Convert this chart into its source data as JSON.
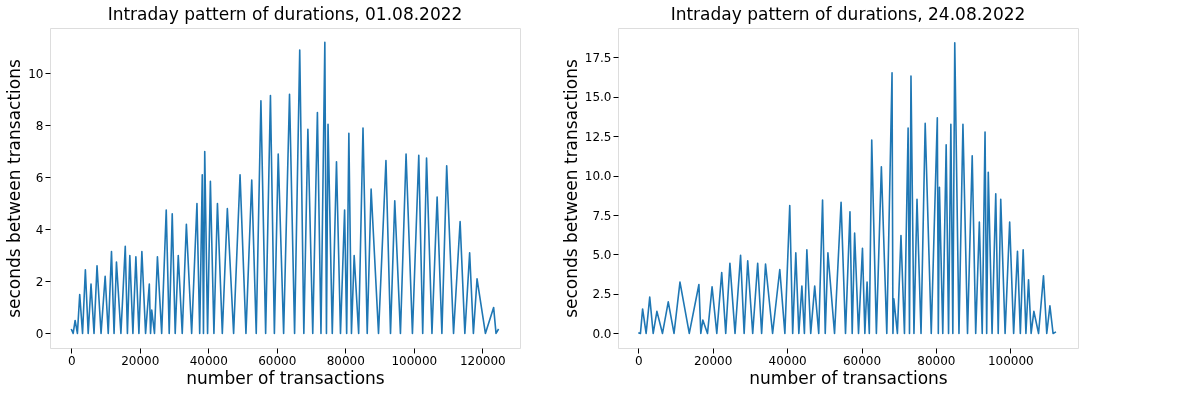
{
  "chart_data": [
    {
      "type": "line",
      "title": "Intraday pattern of durations, 01.08.2022",
      "xlabel": "number of transactions",
      "ylabel": "seconds between transactions",
      "xlim": [
        -6200,
        131000
      ],
      "ylim": [
        -0.56,
        11.75
      ],
      "xticks": [
        0,
        20000,
        40000,
        60000,
        80000,
        100000,
        120000
      ],
      "yticks": [
        0,
        2,
        4,
        6,
        8,
        10
      ],
      "grid": false,
      "marker": "none",
      "line_style": "solid",
      "series": [
        {
          "color": "#1f77b4",
          "x": [
            0,
            567,
            1134,
            1800,
            2474,
            3300,
            4124,
            4950,
            5774,
            6650,
            7526,
            8700,
            9900,
            10800,
            11750,
            12500,
            13200,
            14500,
            15770,
            16400,
            17100,
            18000,
            18870,
            19750,
            20620,
            21700,
            22790,
            23150,
            23500,
            24300,
            25160,
            26400,
            27730,
            28600,
            29480,
            30350,
            31240,
            32400,
            33610,
            35150,
            36700,
            37500,
            38250,
            38600,
            38970,
            39800,
            40620,
            41650,
            42680,
            44100,
            45570,
            47400,
            49280,
            51000,
            52690,
            54000,
            55370,
            56750,
            58150,
            59300,
            60420,
            62000,
            63720,
            65200,
            66700,
            67900,
            69080,
            70500,
            71860,
            72900,
            74030,
            74500,
            74960,
            76200,
            77430,
            78600,
            79800,
            80400,
            81040,
            81800,
            82590,
            83900,
            85170,
            86400,
            87540,
            89700,
            91870,
            93200,
            94440,
            96100,
            97740,
            99600,
            101450,
            102600,
            103720,
            105300,
            106810,
            108200,
            109600,
            111600,
            113520,
            114900,
            116300,
            117400,
            118460,
            120900,
            123300,
            124000,
            124750
          ],
          "values": [
            0.17,
            0,
            0.5,
            0,
            1.5,
            0,
            2.45,
            0,
            1.9,
            0,
            2.6,
            0,
            2.2,
            0,
            3.15,
            0,
            2.75,
            0,
            3.35,
            0,
            3.0,
            0,
            2.95,
            0,
            3.15,
            0,
            1.9,
            0,
            0.9,
            0,
            2.95,
            0,
            4.75,
            0,
            4.6,
            0,
            3.0,
            0,
            4.2,
            0,
            5.0,
            0,
            6.1,
            0,
            7.0,
            0,
            5.85,
            0,
            5.0,
            0,
            4.8,
            0,
            6.1,
            0,
            5.9,
            0,
            8.95,
            0,
            9.15,
            0,
            6.9,
            0,
            9.2,
            0,
            10.9,
            0,
            7.85,
            0,
            8.5,
            0,
            11.2,
            0,
            8.05,
            0,
            6.6,
            0,
            4.75,
            0,
            7.7,
            0,
            3.0,
            0,
            7.9,
            0,
            5.55,
            0,
            6.65,
            0,
            5.1,
            0,
            6.9,
            0,
            6.85,
            0,
            6.75,
            0,
            5.25,
            0,
            6.45,
            0,
            4.3,
            0,
            3.1,
            0,
            2.1,
            0,
            1.0,
            0,
            0.17
          ]
        }
      ]
    },
    {
      "type": "line",
      "title": "Intraday pattern of durations, 24.08.2022",
      "xlabel": "number of transactions",
      "ylabel": "seconds between transactions",
      "xlim": [
        -5460,
        118200
      ],
      "ylim": [
        -0.92,
        19.34
      ],
      "xticks": [
        0,
        20000,
        40000,
        60000,
        80000,
        100000
      ],
      "yticks": [
        {
          "value": 0,
          "label": "0.0"
        },
        {
          "value": 2.5,
          "label": "2.5"
        },
        {
          "value": 5,
          "label": "5.0"
        },
        {
          "value": 7.5,
          "label": "7.5"
        },
        {
          "value": 10,
          "label": "10.0"
        },
        {
          "value": 12.5,
          "label": "12.5"
        },
        {
          "value": 15,
          "label": "15.0"
        },
        {
          "value": 17.5,
          "label": "17.5"
        }
      ],
      "grid": false,
      "marker": "none",
      "line_style": "solid",
      "series": [
        {
          "color": "#1f77b4",
          "x": [
            0,
            575,
            1150,
            2100,
            3070,
            4000,
            5000,
            6500,
            8050,
            9600,
            11200,
            13700,
            16290,
            16800,
            17340,
            18600,
            19830,
            21100,
            22420,
            23500,
            24620,
            26000,
            27490,
            28450,
            29410,
            30750,
            32090,
            33150,
            34200,
            36100,
            38030,
            39400,
            40710,
            41500,
            42340,
            43150,
            43970,
            44650,
            45310,
            46350,
            47420,
            48500,
            49530,
            50250,
            50970,
            52750,
            54510,
            55700,
            56900,
            57500,
            58150,
            59200,
            60260,
            60900,
            61500,
            62100,
            62750,
            64000,
            65340,
            66800,
            68210,
            68450,
            68690,
            69650,
            70610,
            71550,
            72530,
            72900,
            73300,
            74100,
            74920,
            76000,
            77120,
            78750,
            80380,
            80650,
            80950,
            81850,
            82760,
            83400,
            84020,
            84550,
            85070,
            86200,
            87270,
            88500,
            89760,
            90700,
            91680,
            92450,
            93210,
            93650,
            94080,
            95100,
            96090,
            96750,
            97430,
            98600,
            99830,
            100900,
            101930,
            102700,
            103460,
            104200,
            104900,
            105600,
            106340,
            107600,
            108920,
            109800,
            110650,
            111500,
            112280
          ],
          "values": [
            0.05,
            0,
            1.55,
            0,
            2.3,
            0,
            1.4,
            0,
            2.0,
            0,
            3.25,
            0,
            3.1,
            0,
            0.85,
            0,
            2.95,
            0,
            3.85,
            0,
            4.45,
            0,
            4.95,
            0,
            4.6,
            0,
            4.45,
            0,
            4.4,
            0,
            4.05,
            0,
            8.1,
            0,
            5.1,
            0,
            3.0,
            0,
            5.3,
            0,
            3.0,
            0,
            8.45,
            0,
            5.1,
            0,
            8.3,
            0,
            7.7,
            0,
            6.35,
            0,
            5.4,
            0,
            3.25,
            0,
            12.25,
            0,
            10.55,
            0,
            16.5,
            0,
            2.2,
            0,
            6.2,
            0,
            13.0,
            0,
            16.3,
            0,
            8.5,
            0,
            13.3,
            0,
            13.65,
            0,
            9.25,
            0,
            11.95,
            0,
            13.25,
            0,
            18.4,
            0,
            13.25,
            0,
            11.25,
            0,
            7.05,
            0,
            12.75,
            0,
            10.2,
            0,
            8.85,
            0,
            8.5,
            0,
            7.05,
            0,
            5.2,
            0,
            5.3,
            0,
            3.4,
            0,
            1.4,
            0,
            3.65,
            0,
            1.75,
            0,
            0.1
          ]
        }
      ]
    }
  ]
}
